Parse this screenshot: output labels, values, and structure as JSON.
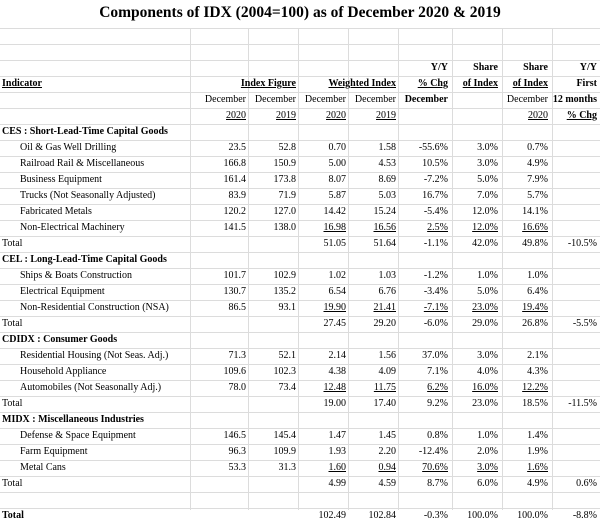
{
  "title": "Components of IDX (2004=100) as of December 2020 & 2019",
  "header": {
    "yy_top": "Y/Y",
    "share_top": "Share",
    "share2_top": "Share",
    "yy2_top": "Y/Y",
    "indicator": "Indicator",
    "index_figure": "Index Figure",
    "weighted_index": "Weighted Index",
    "pct_chg": "% Chg",
    "of_index": "of Index",
    "of_index2": "of Index",
    "first": "First",
    "december": "December",
    "twelve_months": "12 months",
    "y2020": "2020",
    "y2019": "2019",
    "pct_chg2": "% Chg"
  },
  "sections": [
    {
      "name": "CES : Short-Lead-Time Capital Goods",
      "rows": [
        {
          "label": "Oil & Gas Well Drilling",
          "i20": "23.5",
          "i19": "52.8",
          "w20": "0.70",
          "w19": "1.58",
          "yy": "-55.6%",
          "sh19": "3.0%",
          "sh20": "0.7%",
          "ytd": ""
        },
        {
          "label": "Railroad Rail & Miscellaneous",
          "i20": "166.8",
          "i19": "150.9",
          "w20": "5.00",
          "w19": "4.53",
          "yy": "10.5%",
          "sh19": "3.0%",
          "sh20": "4.9%",
          "ytd": ""
        },
        {
          "label": "Business Equipment",
          "i20": "161.4",
          "i19": "173.8",
          "w20": "8.07",
          "w19": "8.69",
          "yy": "-7.2%",
          "sh19": "5.0%",
          "sh20": "7.9%",
          "ytd": ""
        },
        {
          "label": "Trucks (Not Seasonally Adjusted)",
          "i20": "83.9",
          "i19": "71.9",
          "w20": "5.87",
          "w19": "5.03",
          "yy": "16.7%",
          "sh19": "7.0%",
          "sh20": "5.7%",
          "ytd": ""
        },
        {
          "label": "Fabricated Metals",
          "i20": "120.2",
          "i19": "127.0",
          "w20": "14.42",
          "w19": "15.24",
          "yy": "-5.4%",
          "sh19": "12.0%",
          "sh20": "14.1%",
          "ytd": ""
        },
        {
          "label": "Non-Electrical Machinery",
          "i20": "141.5",
          "i19": "138.0",
          "w20": "16.98",
          "w19": "16.56",
          "yy": "2.5%",
          "sh19": "12.0%",
          "sh20": "16.6%",
          "ytd": "",
          "underline": true
        }
      ],
      "total": {
        "label": "Total",
        "w20": "51.05",
        "w19": "51.64",
        "yy": "-1.1%",
        "sh19": "42.0%",
        "sh20": "49.8%",
        "ytd": "-10.5%"
      }
    },
    {
      "name": "CEL : Long-Lead-Time Capital Goods",
      "rows": [
        {
          "label": "Ships & Boats Construction",
          "i20": "101.7",
          "i19": "102.9",
          "w20": "1.02",
          "w19": "1.03",
          "yy": "-1.2%",
          "sh19": "1.0%",
          "sh20": "1.0%",
          "ytd": ""
        },
        {
          "label": "Electrical Equipment",
          "i20": "130.7",
          "i19": "135.2",
          "w20": "6.54",
          "w19": "6.76",
          "yy": "-3.4%",
          "sh19": "5.0%",
          "sh20": "6.4%",
          "ytd": ""
        },
        {
          "label": "Non-Residential Construction (NSA)",
          "i20": "86.5",
          "i19": "93.1",
          "w20": "19.90",
          "w19": "21.41",
          "yy": "-7.1%",
          "sh19": "23.0%",
          "sh20": "19.4%",
          "ytd": "",
          "underline": true
        }
      ],
      "total": {
        "label": "Total",
        "w20": "27.45",
        "w19": "29.20",
        "yy": "-6.0%",
        "sh19": "29.0%",
        "sh20": "26.8%",
        "ytd": "-5.5%"
      }
    },
    {
      "name": "CDIDX : Consumer Goods",
      "rows": [
        {
          "label": "Residential Housing (Not Seas. Adj.)",
          "i20": "71.3",
          "i19": "52.1",
          "w20": "2.14",
          "w19": "1.56",
          "yy": "37.0%",
          "sh19": "3.0%",
          "sh20": "2.1%",
          "ytd": ""
        },
        {
          "label": "Household Appliance",
          "i20": "109.6",
          "i19": "102.3",
          "w20": "4.38",
          "w19": "4.09",
          "yy": "7.1%",
          "sh19": "4.0%",
          "sh20": "4.3%",
          "ytd": ""
        },
        {
          "label": "Automobiles (Not Seasonally Adj.)",
          "i20": "78.0",
          "i19": "73.4",
          "w20": "12.48",
          "w19": "11.75",
          "yy": "6.2%",
          "sh19": "16.0%",
          "sh20": "12.2%",
          "ytd": "",
          "underline": true
        }
      ],
      "total": {
        "label": "Total",
        "w20": "19.00",
        "w19": "17.40",
        "yy": "9.2%",
        "sh19": "23.0%",
        "sh20": "18.5%",
        "ytd": "-11.5%"
      }
    },
    {
      "name": "MIDX : Miscellaneous Industries",
      "rows": [
        {
          "label": "Defense & Space Equipment",
          "i20": "146.5",
          "i19": "145.4",
          "w20": "1.47",
          "w19": "1.45",
          "yy": "0.8%",
          "sh19": "1.0%",
          "sh20": "1.4%",
          "ytd": ""
        },
        {
          "label": "Farm Equipment",
          "i20": "96.3",
          "i19": "109.9",
          "w20": "1.93",
          "w19": "2.20",
          "yy": "-12.4%",
          "sh19": "2.0%",
          "sh20": "1.9%",
          "ytd": ""
        },
        {
          "label": "Metal Cans",
          "i20": "53.3",
          "i19": "31.3",
          "w20": "1.60",
          "w19": "0.94",
          "yy": "70.6%",
          "sh19": "3.0%",
          "sh20": "1.6%",
          "ytd": "",
          "underline": true
        }
      ],
      "total": {
        "label": "Total",
        "w20": "4.99",
        "w19": "4.59",
        "yy": "8.7%",
        "sh19": "6.0%",
        "sh20": "4.9%",
        "ytd": "0.6%"
      }
    }
  ],
  "grand_total": {
    "label": "Total",
    "w20": "102.49",
    "w19": "102.84",
    "yy": "-0.3%",
    "sh19": "100.0%",
    "sh20": "100.0%",
    "ytd": "-8.8%"
  }
}
